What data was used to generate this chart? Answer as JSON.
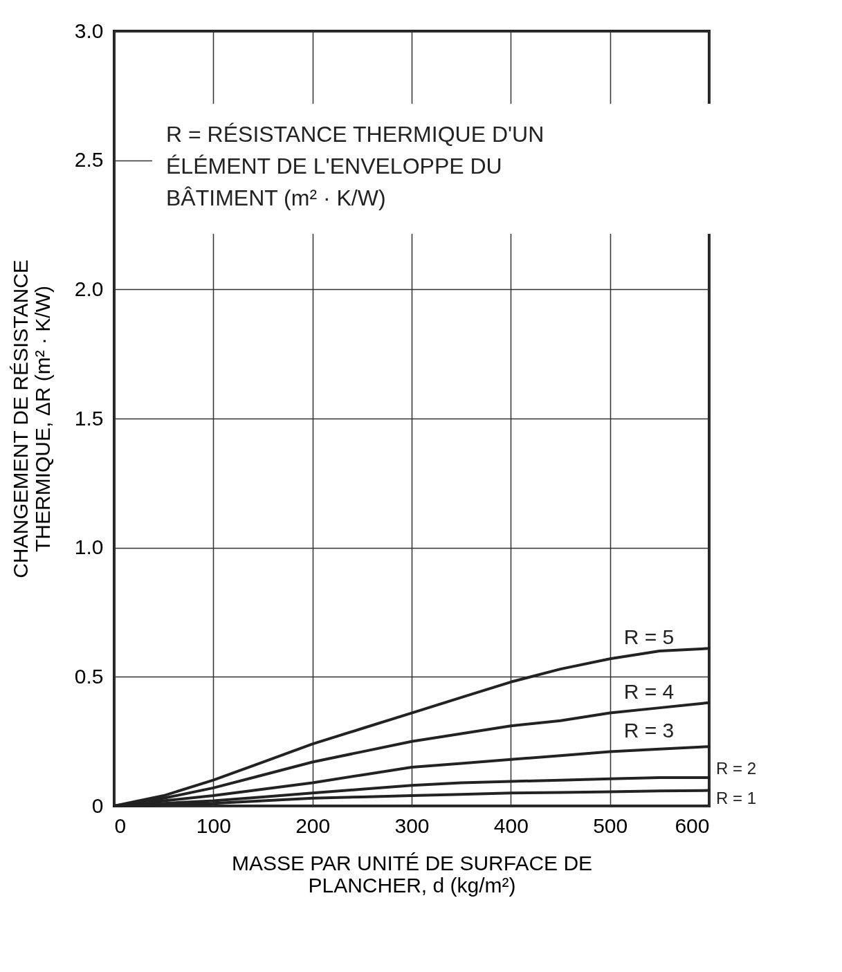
{
  "chart_data": {
    "type": "line",
    "xlabel": "MASSE PAR UNITÉ DE SURFACE DE PLANCHER, d (kg/m²)",
    "ylabel": "CHANGEMENT DE RÉSISTANCE THERMIQUE, ΔR (m² · K/W)",
    "annotations": [
      "R = RÉSISTANCE THERMIQUE D'UN ÉLÉMENT DE L'ENVELOPPE DU BÂTIMENT (m² · K/W)"
    ],
    "x": [
      0,
      50,
      100,
      150,
      200,
      250,
      300,
      350,
      400,
      450,
      500,
      550,
      600
    ],
    "series": [
      {
        "name": "R = 5",
        "color": "#222222",
        "values": [
          0,
          0.04,
          0.1,
          0.17,
          0.24,
          0.3,
          0.36,
          0.42,
          0.48,
          0.53,
          0.57,
          0.6,
          0.61
        ]
      },
      {
        "name": "R = 4",
        "color": "#222222",
        "values": [
          0,
          0.03,
          0.07,
          0.12,
          0.17,
          0.21,
          0.25,
          0.28,
          0.31,
          0.33,
          0.36,
          0.38,
          0.4
        ]
      },
      {
        "name": "R = 3",
        "color": "#222222",
        "values": [
          0,
          0.02,
          0.04,
          0.065,
          0.09,
          0.12,
          0.15,
          0.165,
          0.18,
          0.195,
          0.21,
          0.22,
          0.23
        ]
      },
      {
        "name": "R = 2",
        "color": "#222222",
        "values": [
          0,
          0.01,
          0.02,
          0.035,
          0.05,
          0.065,
          0.08,
          0.09,
          0.095,
          0.1,
          0.105,
          0.11,
          0.11
        ]
      },
      {
        "name": "R = 1",
        "color": "#222222",
        "values": [
          0,
          0.005,
          0.01,
          0.02,
          0.03,
          0.035,
          0.04,
          0.045,
          0.05,
          0.052,
          0.055,
          0.058,
          0.06
        ]
      }
    ],
    "xlim": [
      0,
      600
    ],
    "xticks": [
      0,
      100,
      200,
      300,
      400,
      500,
      600
    ],
    "ylim": [
      0,
      3
    ],
    "yticks": [
      0,
      0.5,
      {
        "value": 1,
        "label": "1.0"
      },
      1.5,
      {
        "value": 2,
        "label": "2.0"
      },
      2.5,
      {
        "value": 3,
        "label": "3.0"
      }
    ],
    "grid": true,
    "marker": "none",
    "line_style": "solid"
  }
}
